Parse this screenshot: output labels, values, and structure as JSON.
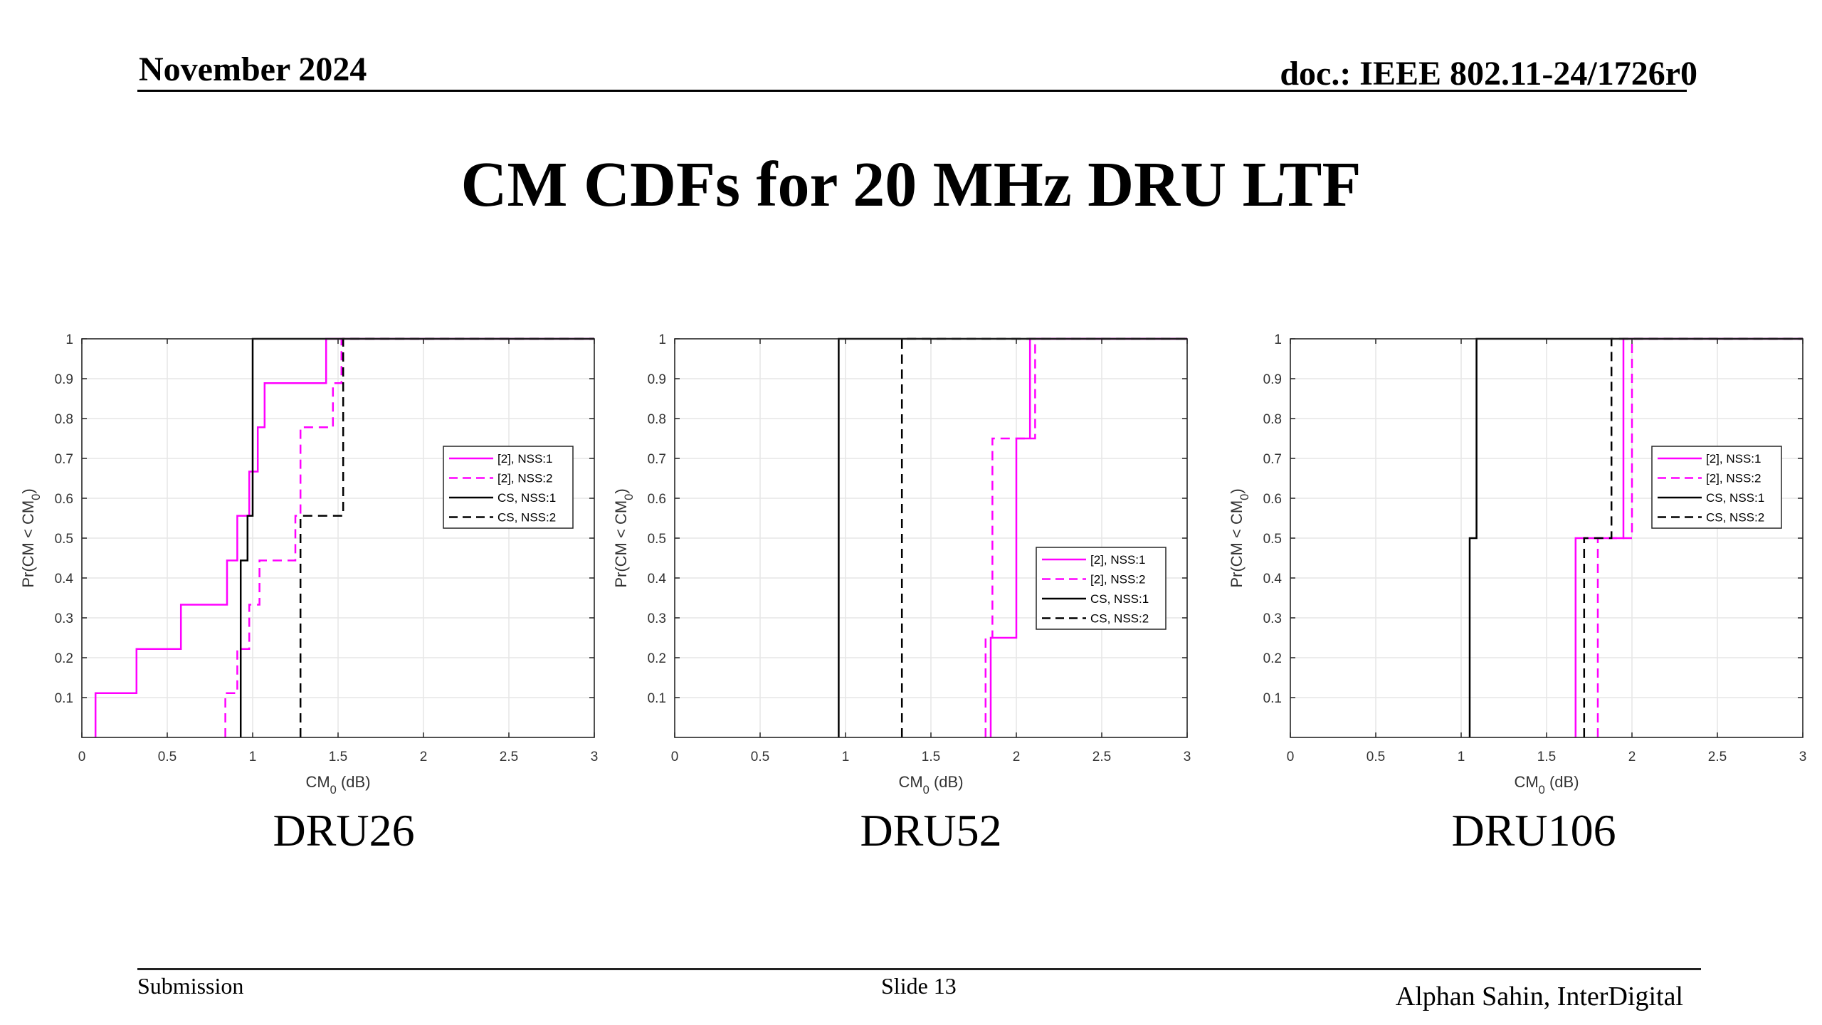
{
  "header": {
    "date": "November 2024",
    "doc": "doc.: IEEE 802.11-24/1726r0"
  },
  "title": "CM CDFs for 20 MHz DRU LTF",
  "footer": {
    "left": "Submission",
    "center": "Slide 13",
    "right": "Alphan Sahin, InterDigital"
  },
  "colors": {
    "magenta": "#ff00ff",
    "black": "#000000",
    "grid": "#e6e6e6"
  },
  "chart_data": [
    {
      "type": "line",
      "caption": "DRU26",
      "xlabel": "CM₀ (dB)",
      "ylabel": "Pr(CM < CM₀)",
      "xlim": [
        0,
        3
      ],
      "ylim": [
        0,
        1
      ],
      "xticks": [
        "0",
        "0.5",
        "1",
        "1.5",
        "2",
        "2.5",
        "3"
      ],
      "yticks": [
        "0.1",
        "0.2",
        "0.3",
        "0.4",
        "0.5",
        "0.6",
        "0.7",
        "0.8",
        "0.9",
        "1"
      ],
      "grid": true,
      "legend_position": "right-middle",
      "series": [
        {
          "name": "[2], NSS:1",
          "color": "#ff00ff",
          "dash": "solid",
          "x": [
            0.08,
            0.08,
            0.32,
            0.32,
            0.58,
            0.58,
            0.85,
            0.85,
            0.91,
            0.91,
            0.98,
            0.98,
            1.03,
            1.03,
            1.07,
            1.07,
            1.14,
            1.14,
            1.43,
            1.43,
            3.0
          ],
          "y": [
            0.0,
            0.111,
            0.111,
            0.222,
            0.222,
            0.333,
            0.333,
            0.444,
            0.444,
            0.556,
            0.556,
            0.667,
            0.667,
            0.778,
            0.778,
            0.889,
            0.889,
            0.889,
            0.889,
            1.0,
            1.0
          ]
        },
        {
          "name": "[2], NSS:2",
          "color": "#ff00ff",
          "dash": "dashed",
          "x": [
            0.84,
            0.84,
            0.91,
            0.91,
            0.98,
            0.98,
            1.04,
            1.04,
            1.25,
            1.25,
            1.28,
            1.28,
            1.47,
            1.47,
            1.52,
            1.52,
            3.0
          ],
          "y": [
            0.0,
            0.111,
            0.111,
            0.222,
            0.222,
            0.333,
            0.333,
            0.444,
            0.444,
            0.556,
            0.556,
            0.778,
            0.778,
            0.889,
            0.889,
            1.0,
            1.0
          ]
        },
        {
          "name": "CS, NSS:1",
          "color": "#000000",
          "dash": "solid",
          "x": [
            0.93,
            0.93,
            0.97,
            0.97,
            1.0,
            1.0,
            3.0
          ],
          "y": [
            0.0,
            0.444,
            0.444,
            0.556,
            0.556,
            1.0,
            1.0
          ]
        },
        {
          "name": "CS, NSS:2",
          "color": "#000000",
          "dash": "dashed",
          "x": [
            1.28,
            1.28,
            1.53,
            1.53,
            3.0
          ],
          "y": [
            0.0,
            0.556,
            0.556,
            1.0,
            1.0
          ]
        }
      ]
    },
    {
      "type": "line",
      "caption": "DRU52",
      "xlabel": "CM₀ (dB)",
      "ylabel": "Pr(CM < CM₀)",
      "xlim": [
        0,
        3
      ],
      "ylim": [
        0,
        1
      ],
      "xticks": [
        "0",
        "0.5",
        "1",
        "1.5",
        "2",
        "2.5",
        "3"
      ],
      "yticks": [
        "0.1",
        "0.2",
        "0.3",
        "0.4",
        "0.5",
        "0.6",
        "0.7",
        "0.8",
        "0.9",
        "1"
      ],
      "grid": true,
      "legend_position": "right-lower",
      "series": [
        {
          "name": "[2], NSS:1",
          "color": "#ff00ff",
          "dash": "solid",
          "x": [
            1.85,
            1.85,
            2.0,
            2.0,
            2.08,
            2.08,
            3.0
          ],
          "y": [
            0.0,
            0.25,
            0.25,
            0.75,
            0.75,
            1.0,
            1.0
          ]
        },
        {
          "name": "[2], NSS:2",
          "color": "#ff00ff",
          "dash": "dashed",
          "x": [
            1.82,
            1.82,
            1.86,
            1.86,
            2.11,
            2.11,
            3.0
          ],
          "y": [
            0.0,
            0.25,
            0.25,
            0.75,
            0.75,
            1.0,
            1.0
          ]
        },
        {
          "name": "CS, NSS:1",
          "color": "#000000",
          "dash": "solid",
          "x": [
            0.96,
            0.96,
            3.0
          ],
          "y": [
            0.0,
            1.0,
            1.0
          ]
        },
        {
          "name": "CS, NSS:2",
          "color": "#000000",
          "dash": "dashed",
          "x": [
            1.33,
            1.33,
            3.0
          ],
          "y": [
            0.0,
            1.0,
            1.0
          ]
        }
      ]
    },
    {
      "type": "line",
      "caption": "DRU106",
      "xlabel": "CM₀ (dB)",
      "ylabel": "Pr(CM < CM₀)",
      "xlim": [
        0,
        3
      ],
      "ylim": [
        0,
        1
      ],
      "xticks": [
        "0",
        "0.5",
        "1",
        "1.5",
        "2",
        "2.5",
        "3"
      ],
      "yticks": [
        "0.1",
        "0.2",
        "0.3",
        "0.4",
        "0.5",
        "0.6",
        "0.7",
        "0.8",
        "0.9",
        "1"
      ],
      "grid": true,
      "legend_position": "right-middle",
      "series": [
        {
          "name": "[2], NSS:1",
          "color": "#ff00ff",
          "dash": "solid",
          "x": [
            1.67,
            1.67,
            1.95,
            1.95,
            3.0
          ],
          "y": [
            0.0,
            0.5,
            0.5,
            1.0,
            1.0
          ]
        },
        {
          "name": "[2], NSS:2",
          "color": "#ff00ff",
          "dash": "dashed",
          "x": [
            1.8,
            1.8,
            2.0,
            2.0,
            3.0
          ],
          "y": [
            0.0,
            0.5,
            0.5,
            1.0,
            1.0
          ]
        },
        {
          "name": "CS, NSS:1",
          "color": "#000000",
          "dash": "solid",
          "x": [
            1.05,
            1.05,
            1.09,
            1.09,
            3.0
          ],
          "y": [
            0.0,
            0.5,
            0.5,
            1.0,
            1.0
          ]
        },
        {
          "name": "CS, NSS:2",
          "color": "#000000",
          "dash": "dashed",
          "x": [
            1.72,
            1.72,
            1.88,
            1.88,
            3.0
          ],
          "y": [
            0.0,
            0.5,
            0.5,
            1.0,
            1.0
          ]
        }
      ]
    }
  ]
}
